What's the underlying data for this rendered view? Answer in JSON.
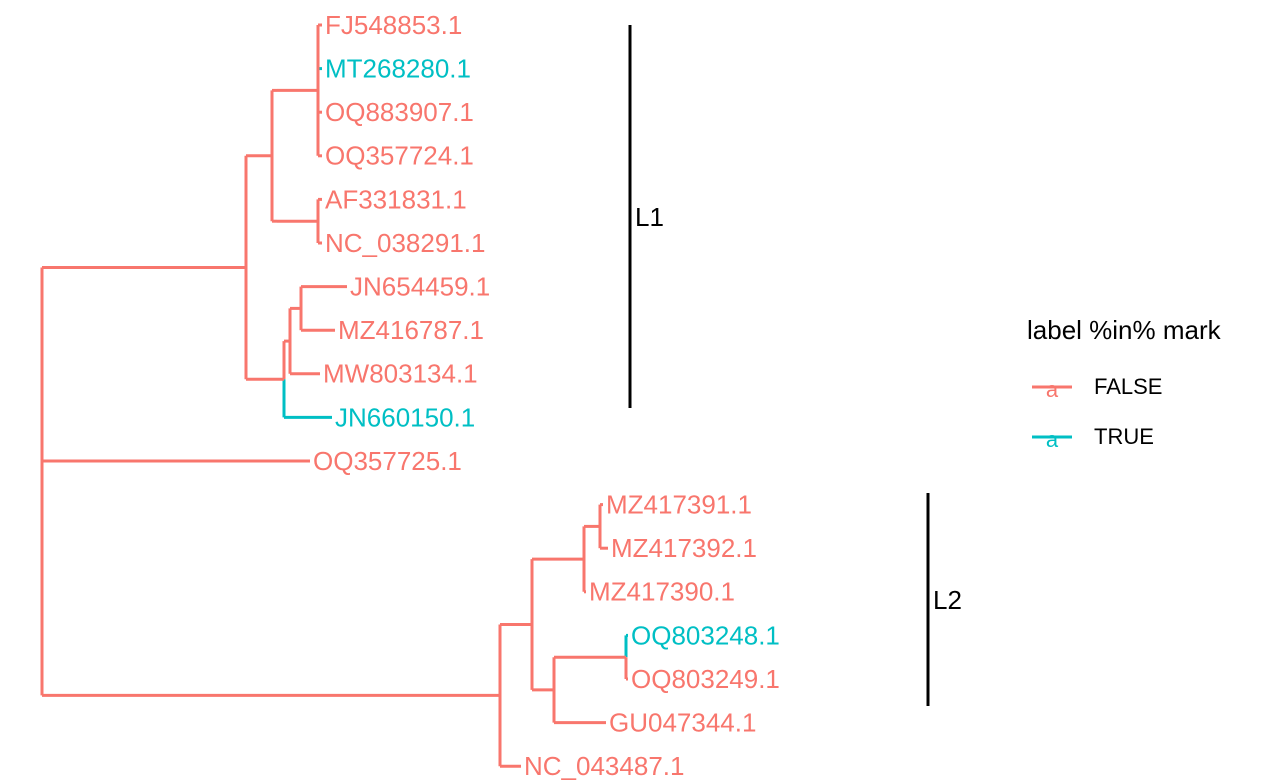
{
  "colors": {
    "false": "#F8766D",
    "true": "#00BFC4",
    "bar": "#000000"
  },
  "tips": [
    {
      "id": "FJ548853.1",
      "mark": false
    },
    {
      "id": "MT268280.1",
      "mark": true
    },
    {
      "id": "OQ883907.1",
      "mark": false
    },
    {
      "id": "OQ357724.1",
      "mark": false
    },
    {
      "id": "AF331831.1",
      "mark": false
    },
    {
      "id": "NC_038291.1",
      "mark": false
    },
    {
      "id": "JN654459.1",
      "mark": false
    },
    {
      "id": "MZ416787.1",
      "mark": false
    },
    {
      "id": "MW803134.1",
      "mark": false
    },
    {
      "id": "JN660150.1",
      "mark": true
    },
    {
      "id": "OQ357725.1",
      "mark": false
    },
    {
      "id": "MZ417391.1",
      "mark": false
    },
    {
      "id": "MZ417392.1",
      "mark": false
    },
    {
      "id": "MZ417390.1",
      "mark": false
    },
    {
      "id": "OQ803248.1",
      "mark": true
    },
    {
      "id": "OQ803249.1",
      "mark": false
    },
    {
      "id": "GU047344.1",
      "mark": false
    },
    {
      "id": "NC_043487.1",
      "mark": false
    }
  ],
  "clades": [
    {
      "label": "L1",
      "first_tip": "FJ548853.1",
      "last_tip": "JN660150.1"
    },
    {
      "label": "L2",
      "first_tip": "MZ417391.1",
      "last_tip": "NC_043487.1"
    }
  ],
  "legend": {
    "title": "label %in% mark",
    "key_glyph": "a",
    "entries": [
      {
        "label": "FALSE",
        "color": "#F8766D"
      },
      {
        "label": "TRUE",
        "color": "#00BFC4"
      }
    ]
  }
}
